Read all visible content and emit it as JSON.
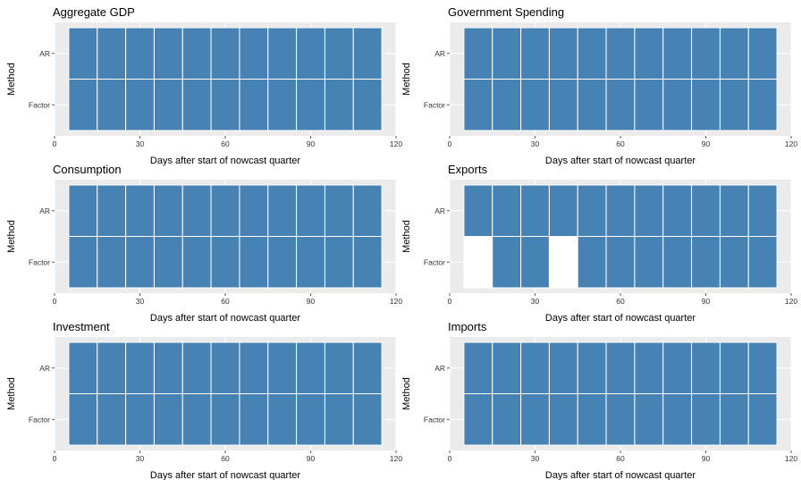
{
  "chart_data": [
    {
      "type": "heatmap",
      "title": "Aggregate GDP",
      "xlabel": "Days after start of nowcast quarter",
      "ylabel": "Method",
      "xlim": [
        0,
        120
      ],
      "xticks": [
        0,
        30,
        60,
        90,
        120
      ],
      "categories": [
        "AR",
        "Factor"
      ],
      "x": [
        10,
        20,
        30,
        40,
        50,
        60,
        70,
        80,
        90,
        100,
        110
      ],
      "series": [
        {
          "name": "AR",
          "values": [
            1,
            1,
            1,
            1,
            1,
            1,
            1,
            1,
            1,
            1,
            1
          ]
        },
        {
          "name": "Factor",
          "values": [
            1,
            1,
            1,
            1,
            1,
            1,
            1,
            1,
            1,
            1,
            1
          ]
        }
      ],
      "fill_color": "#4682B4",
      "panel_bg": "#EBEBEB"
    },
    {
      "type": "heatmap",
      "title": "Government Spending",
      "xlabel": "Days after start of nowcast quarter",
      "ylabel": "Method",
      "xlim": [
        0,
        120
      ],
      "xticks": [
        0,
        30,
        60,
        90,
        120
      ],
      "categories": [
        "AR",
        "Factor"
      ],
      "x": [
        10,
        20,
        30,
        40,
        50,
        60,
        70,
        80,
        90,
        100,
        110
      ],
      "series": [
        {
          "name": "AR",
          "values": [
            1,
            1,
            1,
            1,
            1,
            1,
            1,
            1,
            1,
            1,
            1
          ]
        },
        {
          "name": "Factor",
          "values": [
            1,
            1,
            1,
            1,
            1,
            1,
            1,
            1,
            1,
            1,
            1
          ]
        }
      ],
      "fill_color": "#4682B4",
      "panel_bg": "#EBEBEB"
    },
    {
      "type": "heatmap",
      "title": "Consumption",
      "xlabel": "Days after start of nowcast quarter",
      "ylabel": "Method",
      "xlim": [
        0,
        120
      ],
      "xticks": [
        0,
        30,
        60,
        90,
        120
      ],
      "categories": [
        "AR",
        "Factor"
      ],
      "x": [
        10,
        20,
        30,
        40,
        50,
        60,
        70,
        80,
        90,
        100,
        110
      ],
      "series": [
        {
          "name": "AR",
          "values": [
            1,
            1,
            1,
            1,
            1,
            1,
            1,
            1,
            1,
            1,
            1
          ]
        },
        {
          "name": "Factor",
          "values": [
            1,
            1,
            1,
            1,
            1,
            1,
            1,
            1,
            1,
            1,
            1
          ]
        }
      ],
      "fill_color": "#4682B4",
      "panel_bg": "#EBEBEB"
    },
    {
      "type": "heatmap",
      "title": "Exports",
      "xlabel": "Days after start of nowcast quarter",
      "ylabel": "Method",
      "xlim": [
        0,
        120
      ],
      "xticks": [
        0,
        30,
        60,
        90,
        120
      ],
      "categories": [
        "AR",
        "Factor"
      ],
      "x": [
        10,
        20,
        30,
        40,
        50,
        60,
        70,
        80,
        90,
        100,
        110
      ],
      "series": [
        {
          "name": "AR",
          "values": [
            1,
            1,
            1,
            1,
            1,
            1,
            1,
            1,
            1,
            1,
            1
          ]
        },
        {
          "name": "Factor",
          "values": [
            0,
            1,
            1,
            0,
            1,
            1,
            1,
            1,
            1,
            1,
            1
          ]
        }
      ],
      "fill_color": "#4682B4",
      "panel_bg": "#EBEBEB"
    },
    {
      "type": "heatmap",
      "title": "Investment",
      "xlabel": "Days after start of nowcast quarter",
      "ylabel": "Method",
      "xlim": [
        0,
        120
      ],
      "xticks": [
        0,
        30,
        60,
        90,
        120
      ],
      "categories": [
        "AR",
        "Factor"
      ],
      "x": [
        10,
        20,
        30,
        40,
        50,
        60,
        70,
        80,
        90,
        100,
        110
      ],
      "series": [
        {
          "name": "AR",
          "values": [
            1,
            1,
            1,
            1,
            1,
            1,
            1,
            1,
            1,
            1,
            1
          ]
        },
        {
          "name": "Factor",
          "values": [
            1,
            1,
            1,
            1,
            1,
            1,
            1,
            1,
            1,
            1,
            1
          ]
        }
      ],
      "fill_color": "#4682B4",
      "panel_bg": "#EBEBEB"
    },
    {
      "type": "heatmap",
      "title": "Imports",
      "xlabel": "Days after start of nowcast quarter",
      "ylabel": "Method",
      "xlim": [
        0,
        120
      ],
      "xticks": [
        0,
        30,
        60,
        90,
        120
      ],
      "categories": [
        "AR",
        "Factor"
      ],
      "x": [
        10,
        20,
        30,
        40,
        50,
        60,
        70,
        80,
        90,
        100,
        110
      ],
      "series": [
        {
          "name": "AR",
          "values": [
            1,
            1,
            1,
            1,
            1,
            1,
            1,
            1,
            1,
            1,
            1
          ]
        },
        {
          "name": "Factor",
          "values": [
            1,
            1,
            1,
            1,
            1,
            1,
            1,
            1,
            1,
            1,
            1
          ]
        }
      ],
      "fill_color": "#4682B4",
      "panel_bg": "#EBEBEB"
    }
  ]
}
